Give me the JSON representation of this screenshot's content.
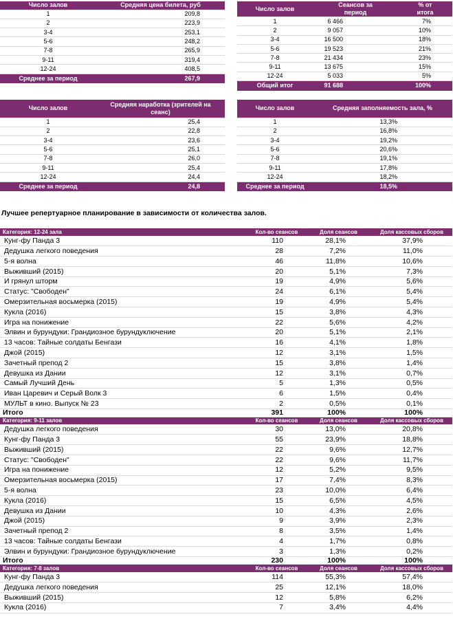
{
  "summary_tables": [
    {
      "headers": [
        "Число залов",
        "Средняя цена билета, руб"
      ],
      "rows": [
        [
          "1",
          "209,8"
        ],
        [
          "2",
          "223,9"
        ],
        [
          "3-4",
          "253,1"
        ],
        [
          "5-6",
          "248,2"
        ],
        [
          "7-8",
          "265,9"
        ],
        [
          "9-11",
          "319,4"
        ],
        [
          "12-24",
          "408,5"
        ]
      ],
      "total": [
        "Среднее за период",
        "267,9"
      ]
    },
    {
      "headers": [
        "Число залов",
        "Сеансов за период",
        "% от итога"
      ],
      "rows": [
        [
          "1",
          "6 466",
          "7%"
        ],
        [
          "2",
          "9 057",
          "10%"
        ],
        [
          "3-4",
          "16 500",
          "18%"
        ],
        [
          "5-6",
          "19 523",
          "21%"
        ],
        [
          "7-8",
          "21 434",
          "23%"
        ],
        [
          "9-11",
          "13 675",
          "15%"
        ],
        [
          "12-24",
          "5 033",
          "5%"
        ]
      ],
      "total": [
        "Общий итог",
        "91 688",
        "100%"
      ]
    },
    {
      "headers": [
        "Число залов",
        "Средняя наработка (зрителей на сеанс)"
      ],
      "rows": [
        [
          "1",
          "25,4"
        ],
        [
          "2",
          "22,8"
        ],
        [
          "3-4",
          "23,6"
        ],
        [
          "5-6",
          "25,1"
        ],
        [
          "7-8",
          "26,0"
        ],
        [
          "9-11",
          "25,4"
        ],
        [
          "12-24",
          "24,4"
        ]
      ],
      "total": [
        "Среднее за период",
        "24,8"
      ]
    },
    {
      "headers": [
        "Число залов",
        "Средняя заполняемость зала, %"
      ],
      "rows": [
        [
          "1",
          "13,3%"
        ],
        [
          "2",
          "16,8%"
        ],
        [
          "3-4",
          "19,2%"
        ],
        [
          "5-6",
          "20,6%"
        ],
        [
          "7-8",
          "19,1%"
        ],
        [
          "9-11",
          "17,8%"
        ],
        [
          "12-24",
          "18,2%"
        ]
      ],
      "total": [
        "Среднее за период",
        "18,5%"
      ]
    }
  ],
  "heading": "Лучшее репертуарное планирование в зависимости от количества залов.",
  "categories": [
    {
      "header": [
        "Категория: 12-24 зала",
        "Кол-во сеансов",
        "Доля сеансов",
        "Доля кассовых сборов"
      ],
      "rows": [
        [
          "Кунг-фу Панда 3",
          "110",
          "28,1%",
          "37,9%"
        ],
        [
          "Дедушка легкого поведения",
          "28",
          "7,2%",
          "11,0%"
        ],
        [
          "5-я волна",
          "46",
          "11,8%",
          "10,6%"
        ],
        [
          "Выживший (2015)",
          "20",
          "5,1%",
          "7,3%"
        ],
        [
          "И грянул шторм",
          "19",
          "4,9%",
          "5,6%"
        ],
        [
          "Статус: \"Свободен\"",
          "24",
          "6,1%",
          "5,4%"
        ],
        [
          "Омерзительная восьмерка (2015)",
          "19",
          "4,9%",
          "5,4%"
        ],
        [
          "Кукла (2016)",
          "15",
          "3,8%",
          "4,3%"
        ],
        [
          "Игра на понижение",
          "22",
          "5,6%",
          "4,2%"
        ],
        [
          "Элвин и бурундуки: Грандиозное бурундуключение",
          "20",
          "5,1%",
          "2,1%"
        ],
        [
          "13 часов: Тайные солдаты Бенгази",
          "16",
          "4,1%",
          "1,8%"
        ],
        [
          "Джой (2015)",
          "12",
          "3,1%",
          "1,5%"
        ],
        [
          "Зачетный препод 2",
          "15",
          "3,8%",
          "1,4%"
        ],
        [
          "Девушка из Дании",
          "12",
          "3,1%",
          "0,7%"
        ],
        [
          "Самый Лучший День",
          "5",
          "1,3%",
          "0,5%"
        ],
        [
          "Иван Царевич и Серый Волк 3",
          "6",
          "1,5%",
          "0,4%"
        ],
        [
          "МУЛЬТ в кино. Выпуск № 23",
          "2",
          "0,5%",
          "0,1%"
        ]
      ],
      "total": [
        "Итого",
        "391",
        "100%",
        "100%"
      ]
    },
    {
      "header": [
        "Категория: 9-11 залов",
        "Кол-во сеансов",
        "Доля сеансов",
        "Доля кассовых сборов"
      ],
      "rows": [
        [
          "Дедушка легкого поведения",
          "30",
          "13,0%",
          "20,8%"
        ],
        [
          "Кунг-фу Панда 3",
          "55",
          "23,9%",
          "18,8%"
        ],
        [
          "Выживший (2015)",
          "22",
          "9,6%",
          "12,7%"
        ],
        [
          "Статус: \"Свободен\"",
          "22",
          "9,6%",
          "11,7%"
        ],
        [
          "Игра на понижение",
          "12",
          "5,2%",
          "9,5%"
        ],
        [
          "Омерзительная восьмерка (2015)",
          "17",
          "7,4%",
          "8,3%"
        ],
        [
          "5-я волна",
          "23",
          "10,0%",
          "6,4%"
        ],
        [
          "Кукла (2016)",
          "15",
          "6,5%",
          "4,5%"
        ],
        [
          "Девушка из Дании",
          "10",
          "4,3%",
          "2,6%"
        ],
        [
          "Джой (2015)",
          "9",
          "3,9%",
          "2,3%"
        ],
        [
          "Зачетный препод 2",
          "8",
          "3,5%",
          "1,4%"
        ],
        [
          "13 часов: Тайные солдаты Бенгази",
          "4",
          "1,7%",
          "0,8%"
        ],
        [
          "Элвин и бурундуки: Грандиозное бурундуключение",
          "3",
          "1,3%",
          "0,2%"
        ]
      ],
      "total": [
        "Итого",
        "230",
        "100%",
        "100%"
      ]
    },
    {
      "header": [
        "Категория: 7-8 залов",
        "Кол-во сеансов",
        "Доля сеансов",
        "Доля кассовых сборов"
      ],
      "rows": [
        [
          "Кунг-фу Панда 3",
          "114",
          "55,3%",
          "57,4%"
        ],
        [
          "Дедушка легкого поведения",
          "25",
          "12,1%",
          "18,0%"
        ],
        [
          "Выживший (2015)",
          "12",
          "5,8%",
          "6,2%"
        ],
        [
          "Кукла (2016)",
          "7",
          "3,4%",
          "4,4%"
        ]
      ]
    }
  ]
}
